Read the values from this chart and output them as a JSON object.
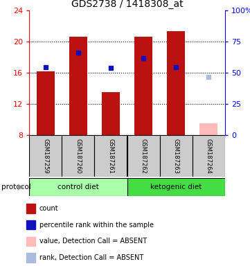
{
  "title": "GDS2738 / 1418308_at",
  "samples": [
    "GSM187259",
    "GSM187260",
    "GSM187261",
    "GSM187262",
    "GSM187263",
    "GSM187264"
  ],
  "bar_values": [
    16.2,
    20.6,
    13.5,
    20.6,
    21.3,
    null
  ],
  "absent_bar_value": 9.5,
  "absent_bar_color": "#ffbbbb",
  "blue_square_values": [
    16.7,
    18.6,
    16.6,
    17.9,
    16.7,
    null
  ],
  "absent_blue_value": 15.5,
  "absent_blue_color": "#aabbdd",
  "ylim_left": [
    8,
    24
  ],
  "ylim_right": [
    0,
    100
  ],
  "yticks_left": [
    8,
    12,
    16,
    20,
    24
  ],
  "yticks_right": [
    0,
    25,
    50,
    75,
    100
  ],
  "ytick_labels_right": [
    "0",
    "25",
    "50",
    "75",
    "100%"
  ],
  "bar_color": "#bb1111",
  "blue_color": "#1111bb",
  "bar_width": 0.55,
  "blue_square_size": 5,
  "grid_lines": [
    12,
    16,
    20
  ],
  "control_color": "#aaffaa",
  "ketogenic_color": "#44dd44",
  "legend_items": [
    {
      "label": "count",
      "color": "#bb1111"
    },
    {
      "label": "percentile rank within the sample",
      "color": "#1111bb"
    },
    {
      "label": "value, Detection Call = ABSENT",
      "color": "#ffbbbb"
    },
    {
      "label": "rank, Detection Call = ABSENT",
      "color": "#aabbdd"
    }
  ]
}
